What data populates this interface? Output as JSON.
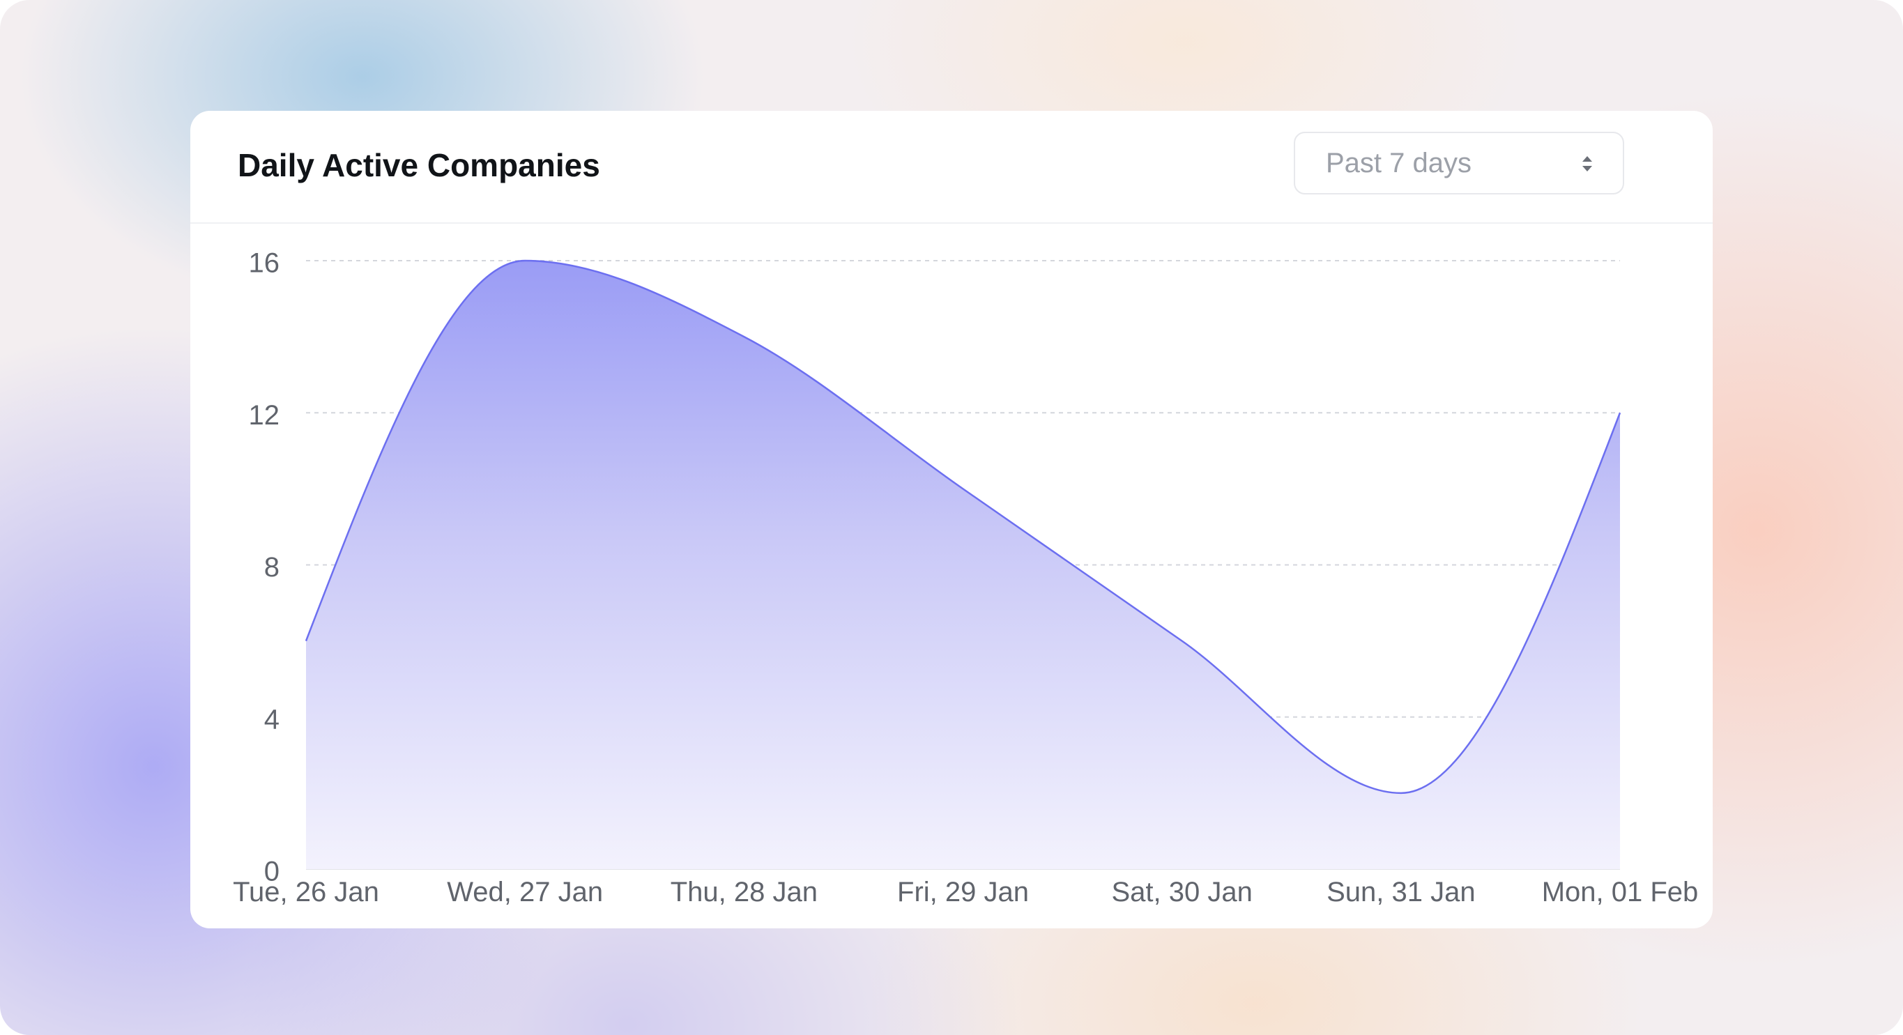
{
  "card": {
    "title": "Daily Active Companies"
  },
  "range_select": {
    "selected": "Past 7 days",
    "icon": "chevron-up-down-icon"
  },
  "colors": {
    "line": "#6c6ff0",
    "fill_top": "#9a9cf5",
    "fill_bottom": "#f3f2fd",
    "grid": "#d4d6dc",
    "axis_text": "#60646c",
    "title": "#111418"
  },
  "chart_data": {
    "type": "area",
    "title": "Daily Active Companies",
    "xlabel": "",
    "ylabel": "",
    "categories": [
      "Tue, 26 Jan",
      "Wed, 27 Jan",
      "Thu, 28 Jan",
      "Fri, 29 Jan",
      "Sat, 30 Jan",
      "Sun, 31 Jan",
      "Mon, 01 Feb"
    ],
    "series": [
      {
        "values": [
          6,
          16,
          14,
          10,
          6,
          2,
          12
        ]
      }
    ],
    "ylim": [
      0,
      16
    ],
    "yticks": [
      0,
      4,
      8,
      12,
      16
    ],
    "grid": true,
    "legend": "none"
  }
}
